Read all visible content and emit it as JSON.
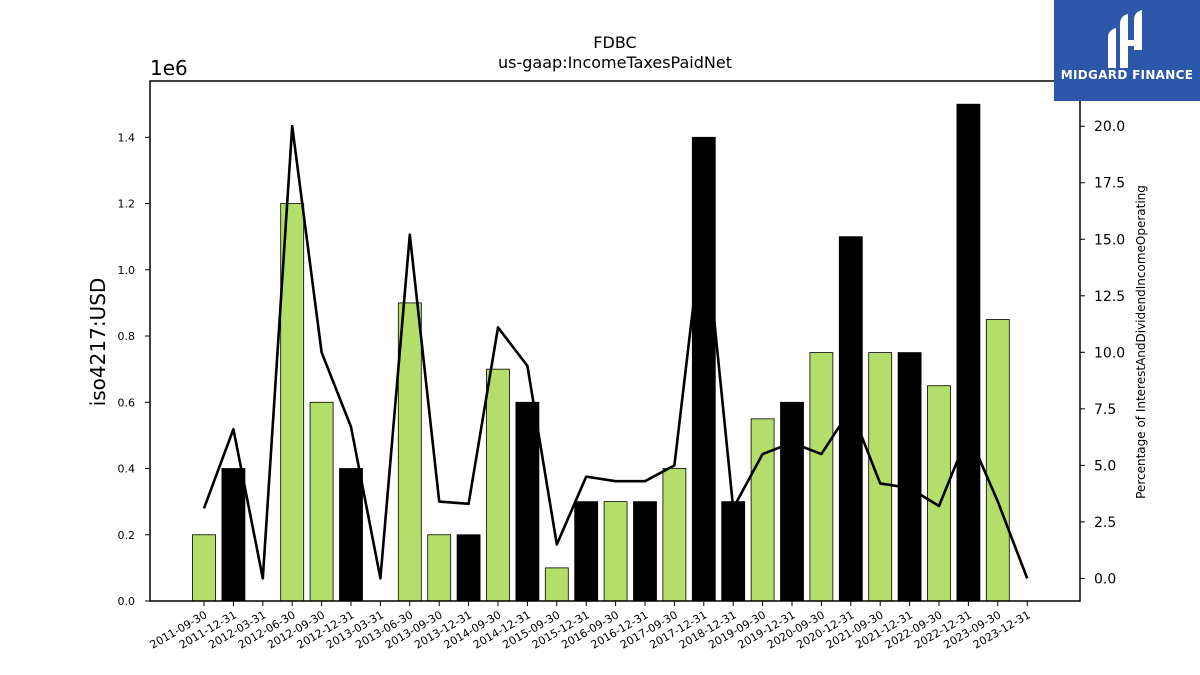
{
  "chart_data": {
    "type": "bar",
    "title": "FDBC",
    "subtitle": "us-gaap:IncomeTaxesPaidNet",
    "ylabel": "iso4217:USD",
    "ylabel_right": "Percentage of InterestAndDividendIncomeOperating",
    "y_offset_label": "1e6",
    "ylim": [
      0,
      1570000
    ],
    "ylim_right": [
      -1.0,
      22.0
    ],
    "yticks": [
      0.0,
      0.2,
      0.4,
      0.6,
      0.8,
      1.0,
      1.2,
      1.4
    ],
    "yticks_right": [
      0.0,
      2.5,
      5.0,
      7.5,
      10.0,
      12.5,
      15.0,
      17.5,
      20.0
    ],
    "categories": [
      "2011-09-30",
      "2011-12-31",
      "2012-03-31",
      "2012-06-30",
      "2012-09-30",
      "2012-12-31",
      "2013-03-31",
      "2013-06-30",
      "2013-09-30",
      "2013-12-31",
      "2014-09-30",
      "2014-12-31",
      "2015-09-30",
      "2015-12-31",
      "2016-09-30",
      "2016-12-31",
      "2017-09-30",
      "2017-12-31",
      "2018-12-31",
      "2019-09-30",
      "2019-12-31",
      "2020-09-30",
      "2020-12-31",
      "2021-09-30",
      "2021-12-31",
      "2022-09-30",
      "2022-12-31",
      "2023-09-30",
      "2023-12-31"
    ],
    "series": [
      {
        "type": "bar",
        "values": [
          200000,
          400000,
          0,
          1200000,
          600000,
          400000,
          0,
          900000,
          200000,
          200000,
          700000,
          600000,
          100000,
          300000,
          300000,
          300000,
          400000,
          1400000,
          300000,
          550000,
          600000,
          750000,
          1100000,
          750000,
          750000,
          650000,
          1500000,
          850000,
          0
        ],
        "bar_colors": [
          "green",
          "black",
          "green",
          "green",
          "green",
          "black",
          "green",
          "green",
          "green",
          "black",
          "green",
          "black",
          "green",
          "black",
          "green",
          "black",
          "green",
          "black",
          "black",
          "green",
          "black",
          "green",
          "black",
          "green",
          "black",
          "green",
          "black",
          "green",
          "black"
        ]
      },
      {
        "type": "line",
        "axis": "right",
        "values": [
          3.1,
          6.6,
          0.0,
          20.0,
          10.0,
          6.7,
          0.0,
          15.2,
          3.4,
          3.3,
          11.1,
          9.4,
          1.5,
          4.5,
          4.3,
          4.3,
          5.0,
          16.0,
          3.1,
          5.5,
          6.0,
          5.5,
          7.5,
          4.2,
          4.0,
          3.2,
          6.4,
          3.4,
          0.0
        ]
      }
    ],
    "colors": {
      "green": "#b3de69",
      "black": "#000000",
      "line": "#000000"
    }
  },
  "logo": {
    "text": "MIDGARD FINANCE",
    "color": "#2d57a8"
  }
}
